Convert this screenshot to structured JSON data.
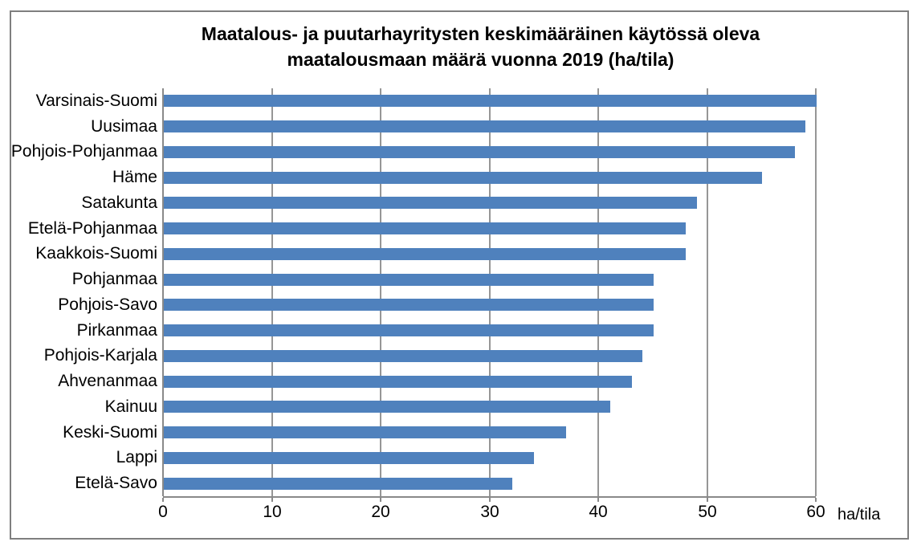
{
  "chart_data": {
    "type": "bar",
    "orientation": "horizontal",
    "title": "Maatalous- ja puutarhayritysten keskimääräinen käytössä oleva maatalousmaan määrä vuonna 2019 (ha/tila)",
    "title_lines": [
      "Maatalous- ja puutarhayritysten keskimääräinen käytössä oleva",
      "maatalousmaan määrä vuonna 2019 (ha/tila)"
    ],
    "categories": [
      "Varsinais-Suomi",
      "Uusimaa",
      "Pohjois-Pohjanmaa",
      "Häme",
      "Satakunta",
      "Etelä-Pohjanmaa",
      "Kaakkois-Suomi",
      "Pohjanmaa",
      "Pohjois-Savo",
      "Pirkanmaa",
      "Pohjois-Karjala",
      "Ahvenanmaa",
      "Kainuu",
      "Keski-Suomi",
      "Lappi",
      "Etelä-Savo"
    ],
    "values": [
      60,
      59,
      58,
      55,
      49,
      48,
      48,
      45,
      45,
      45,
      44,
      43,
      41,
      37,
      34,
      32
    ],
    "xlabel": "ha/tila",
    "ylabel": "",
    "xlim": [
      0,
      60
    ],
    "xticks": [
      0,
      10,
      20,
      30,
      40,
      50,
      60
    ],
    "grid": "vertical-only",
    "legend": "none",
    "bar_color": "#4F81BD",
    "gridline_color": "#969696",
    "axis_color": "#898989",
    "frame_color": "#7f7f7f",
    "background_color": "#ffffff"
  }
}
